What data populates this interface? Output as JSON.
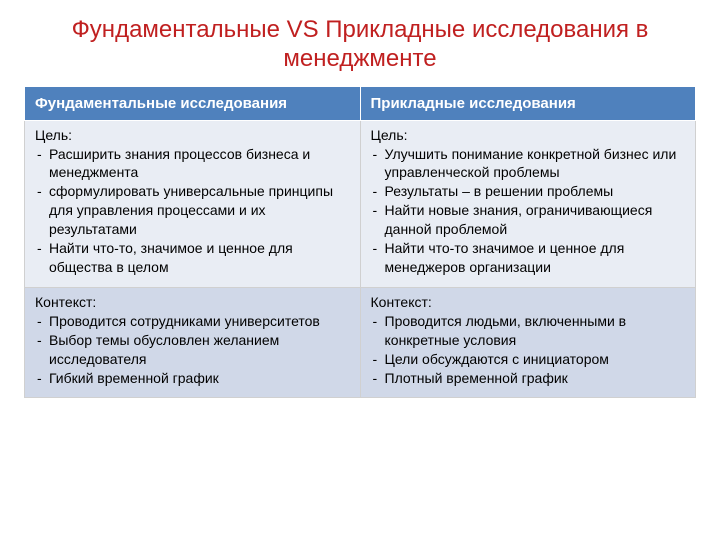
{
  "title": "Фундаментальные VS Прикладные исследования в менеджменте",
  "table": {
    "type": "table",
    "header_bg": "#4f81bd",
    "header_fg": "#ffffff",
    "row_bg_a": "#e9edf4",
    "row_bg_b": "#d0d8e8",
    "text_color": "#000000",
    "border_color": "#d0d0d0",
    "title_color": "#c02020",
    "title_fontsize": 24,
    "body_fontsize": 14,
    "header_fontsize": 15,
    "columns": [
      "Фундаментальные исследования",
      "Прикладные исследования"
    ],
    "rows": [
      {
        "left": {
          "heading": "Цель:",
          "bullets": [
            "Расширить знания процессов бизнеса и менеджмента",
            "сформулировать универсальные принципы для управления процессами и их результатами",
            "Найти что-то, значимое и ценное для общества в целом"
          ]
        },
        "right": {
          "heading": "Цель:",
          "bullets": [
            "Улучшить понимание конкретной бизнес или управленческой проблемы",
            "Результаты – в решении проблемы",
            "Найти новые знания, ограничивающиеся данной проблемой",
            "Найти что-то значимое и ценное для менеджеров организации"
          ]
        }
      },
      {
        "left": {
          "heading": "Контекст:",
          "bullets": [
            "Проводится сотрудниками университетов",
            "Выбор темы обусловлен желанием исследователя",
            "Гибкий временной график"
          ]
        },
        "right": {
          "heading": "Контекст:",
          "bullets": [
            "Проводится людьми, включенными в конкретные условия",
            "Цели обсуждаются с инициатором",
            "Плотный временной график"
          ]
        }
      }
    ]
  }
}
